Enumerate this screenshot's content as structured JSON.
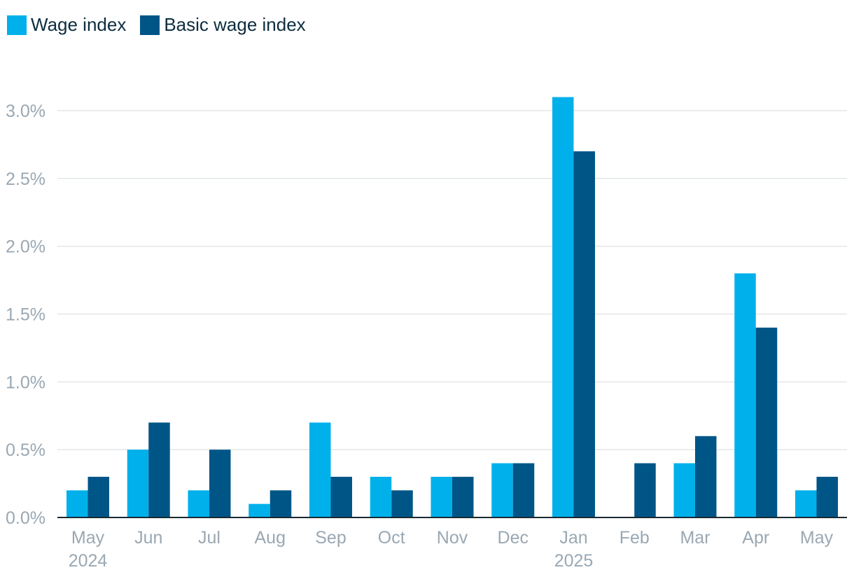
{
  "chart_data": {
    "type": "bar",
    "categories": [
      "May",
      "Jun",
      "Jul",
      "Aug",
      "Sep",
      "Oct",
      "Nov",
      "Dec",
      "Jan",
      "Feb",
      "Mar",
      "Apr",
      "May"
    ],
    "year_labels": [
      "2024",
      "",
      "",
      "",
      "",
      "",
      "",
      "",
      "2025",
      "",
      "",
      "",
      ""
    ],
    "series": [
      {
        "name": "Wage index",
        "color": "#00b0eb",
        "values": [
          0.2,
          0.5,
          0.2,
          0.1,
          0.7,
          0.3,
          0.3,
          0.4,
          3.1,
          0.0,
          0.4,
          1.8,
          0.2
        ]
      },
      {
        "name": "Basic wage index",
        "color": "#005587",
        "values": [
          0.3,
          0.7,
          0.5,
          0.2,
          0.3,
          0.2,
          0.3,
          0.4,
          2.7,
          0.4,
          0.6,
          1.4,
          0.3
        ]
      }
    ],
    "ylim": [
      0,
      3.0
    ],
    "yticks": [
      "0.0%",
      "0.5%",
      "1.0%",
      "1.5%",
      "2.0%",
      "2.5%",
      "3.0%"
    ],
    "ytick_values": [
      0,
      0.5,
      1.0,
      1.5,
      2.0,
      2.5,
      3.0
    ],
    "grid": true,
    "legend_position": "top-left",
    "title": "",
    "xlabel": "",
    "ylabel": ""
  }
}
